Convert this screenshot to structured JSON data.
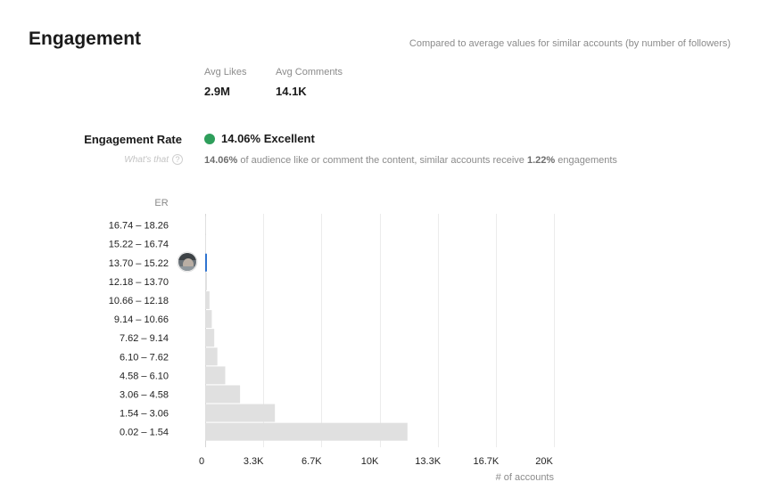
{
  "header": {
    "title": "Engagement",
    "compare_note": "Compared to average values for similar accounts (by number of followers)"
  },
  "stats": [
    {
      "label": "Avg Likes",
      "value": "2.9M"
    },
    {
      "label": "Avg Comments",
      "value": "14.1K"
    }
  ],
  "engagement_rate": {
    "label": "Engagement Rate",
    "help_text": "What's that",
    "help_icon": "?",
    "value": "14.06% Excellent",
    "status_color": "#2e9e5b",
    "desc_pre": "of audience like or comment the content, similar accounts receive",
    "desc_account": "14.06%",
    "desc_similar": "1.22%",
    "desc_post": "engagements"
  },
  "colors": {
    "bar": "#e0e0e0",
    "highlight": "#2f74d0",
    "grid": "#ececec"
  },
  "chart_data": {
    "type": "bar",
    "orientation": "horizontal",
    "ylabel": "ER",
    "xlabel": "# of accounts",
    "categories": [
      "16.74 – 18.26",
      "15.22 – 16.74",
      "13.70 – 15.22",
      "12.18 – 13.70",
      "10.66 – 12.18",
      "9.14 – 10.66",
      "7.62 – 9.14",
      "6.10 – 7.62",
      "4.58 – 6.10",
      "3.06 – 4.58",
      "1.54 – 3.06",
      "0.02 – 1.54"
    ],
    "values": [
      20,
      30,
      60,
      100,
      250,
      380,
      520,
      700,
      1150,
      2000,
      4000,
      11600
    ],
    "highlight_category": "13.70 – 15.22",
    "xlim": [
      0,
      20000
    ],
    "xticks": [
      0,
      3333,
      6667,
      10000,
      13333,
      16667,
      20000
    ],
    "xtick_labels": [
      "0",
      "3.3K",
      "6.7K",
      "10K",
      "13.3K",
      "16.7K",
      "20K"
    ],
    "grid": true,
    "avatar_icon": "account-avatar-icon"
  }
}
